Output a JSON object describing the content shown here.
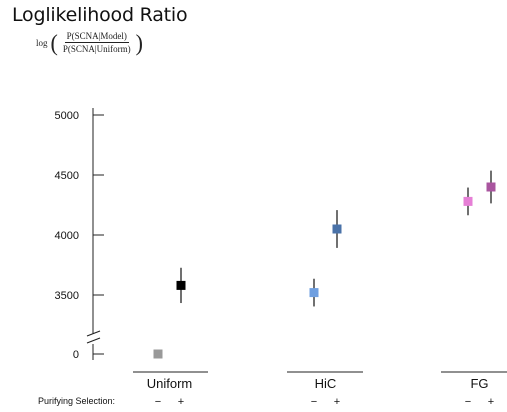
{
  "title": "Loglikelihood Ratio",
  "formula": {
    "prefix": "log",
    "numerator": "P(SCNA|Model)",
    "denominator": "P(SCNA|Uniform)"
  },
  "chart_data": {
    "type": "scatter",
    "title": "Loglikelihood Ratio",
    "xlabel": "",
    "ylabel": "",
    "y_ticks": [
      0,
      3500,
      4000,
      4500,
      5000
    ],
    "ylim_upper": [
      3500,
      5000
    ],
    "axis_break": true,
    "grid": false,
    "groups": [
      "Uniform",
      "HiC",
      "FG"
    ],
    "condition_label": "Purifying Selection:",
    "conditions": [
      "−",
      "+"
    ],
    "points": [
      {
        "group": "Uniform",
        "condition": "−",
        "y": 0,
        "error": null,
        "color": "#999999"
      },
      {
        "group": "Uniform",
        "condition": "+",
        "y": 3580,
        "error": 140,
        "color": "#000000"
      },
      {
        "group": "HiC",
        "condition": "−",
        "y": 3520,
        "error": 110,
        "color": "#6f9fe0"
      },
      {
        "group": "HiC",
        "condition": "+",
        "y": 4050,
        "error": 150,
        "color": "#4a72a8"
      },
      {
        "group": "FG",
        "condition": "−",
        "y": 4280,
        "error": 110,
        "color": "#e67fd6"
      },
      {
        "group": "FG",
        "condition": "+",
        "y": 4400,
        "error": 130,
        "color": "#a9559f"
      }
    ]
  }
}
